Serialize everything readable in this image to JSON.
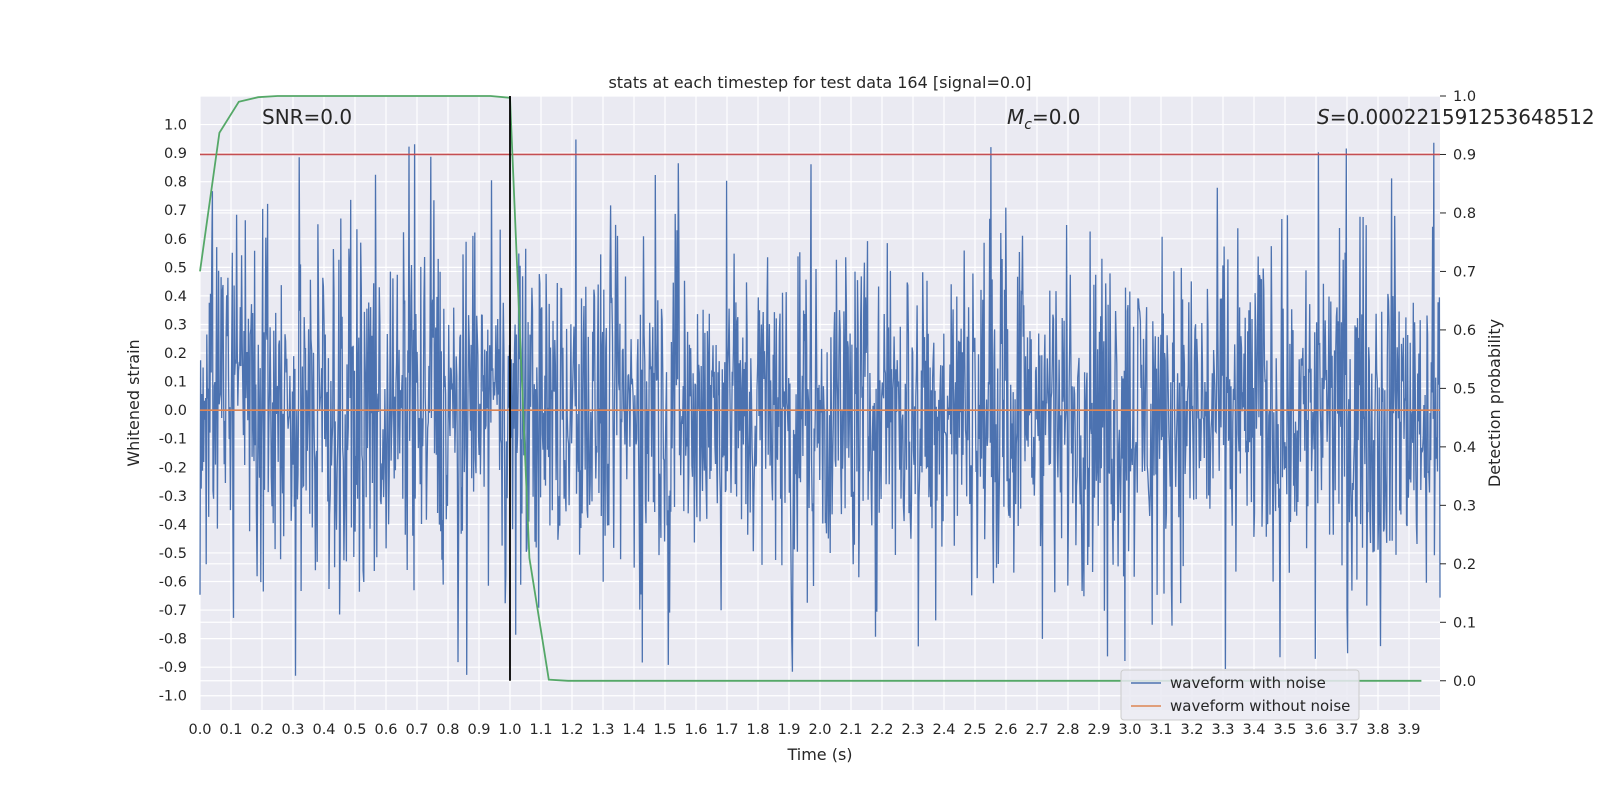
{
  "chart_data": {
    "type": "line",
    "title": "stats at each timestep for test data 164 [signal=0.0]",
    "xlabel": "Time (s)",
    "ylabel_left": "Whitened strain",
    "ylabel_right": "Detection probability",
    "xlim": [
      0,
      4
    ],
    "ylim_left": [
      -1.05,
      1.1
    ],
    "ylim_right": [
      -0.05,
      1.0
    ],
    "x_ticks": [
      "0.0",
      "0.1",
      "0.2",
      "0.3",
      "0.4",
      "0.5",
      "0.6",
      "0.7",
      "0.8",
      "0.9",
      "1.0",
      "1.1",
      "1.2",
      "1.3",
      "1.4",
      "1.5",
      "1.6",
      "1.7",
      "1.8",
      "1.9",
      "2.0",
      "2.1",
      "2.2",
      "2.3",
      "2.4",
      "2.5",
      "2.6",
      "2.7",
      "2.8",
      "2.9",
      "3.0",
      "3.1",
      "3.2",
      "3.3",
      "3.4",
      "3.5",
      "3.6",
      "3.7",
      "3.8",
      "3.9"
    ],
    "y_ticks_left": [
      "-1.0",
      "-0.9",
      "-0.8",
      "-0.7",
      "-0.6",
      "-0.5",
      "-0.4",
      "-0.3",
      "-0.2",
      "-0.1",
      "0.0",
      "0.1",
      "0.2",
      "0.3",
      "0.4",
      "0.5",
      "0.6",
      "0.7",
      "0.8",
      "0.9",
      "1.0"
    ],
    "y_ticks_right": [
      "0.0",
      "0.1",
      "0.2",
      "0.3",
      "0.4",
      "0.5",
      "0.6",
      "0.7",
      "0.8",
      "0.9",
      "1.0"
    ],
    "grid": true,
    "legend_position": "bottom-right",
    "annotations": {
      "snr": "SNR=0.0",
      "mc_symbol": "M",
      "mc_sub": "c",
      "mc_value": "=0.0",
      "s_symbol": "S",
      "s_value": "=0.000221591253648512"
    },
    "vertical_line_x": 1.0,
    "threshold_y_right": 0.9,
    "series": [
      {
        "name": "waveform with noise",
        "axis": "left",
        "color": "#4c72b0",
        "sample_count": 2000,
        "envelope": [
          -0.93,
          1.0
        ]
      },
      {
        "name": "waveform without noise",
        "axis": "left",
        "color": "#dd8452",
        "x": [
          0.0,
          4.0
        ],
        "y": [
          0.0,
          0.0
        ]
      },
      {
        "axis": "right",
        "color": "#55a868",
        "x": [
          0.0,
          0.0625,
          0.125,
          0.1875,
          0.25,
          0.3125,
          0.375,
          0.4375,
          0.5,
          0.5625,
          0.625,
          0.6875,
          0.75,
          0.8125,
          0.875,
          0.9375,
          1.0,
          1.0625,
          1.125,
          1.1875,
          1.25,
          1.5,
          2.0,
          2.5,
          3.0,
          3.5,
          3.94
        ],
        "y": [
          0.7,
          0.937,
          0.99,
          0.998,
          1.0,
          1.0,
          1.0,
          1.0,
          1.0,
          1.0,
          1.0,
          1.0,
          1.0,
          1.0,
          1.0,
          1.0,
          0.997,
          0.21,
          0.002,
          0.0,
          0.0,
          0.0,
          0.0,
          0.0,
          0.0,
          0.0,
          0.0
        ]
      }
    ],
    "colors": {
      "plot_background": "#eaeaf2",
      "grid": "#ffffff",
      "threshold": "#c44e52",
      "vertical_line": "#000000"
    }
  }
}
